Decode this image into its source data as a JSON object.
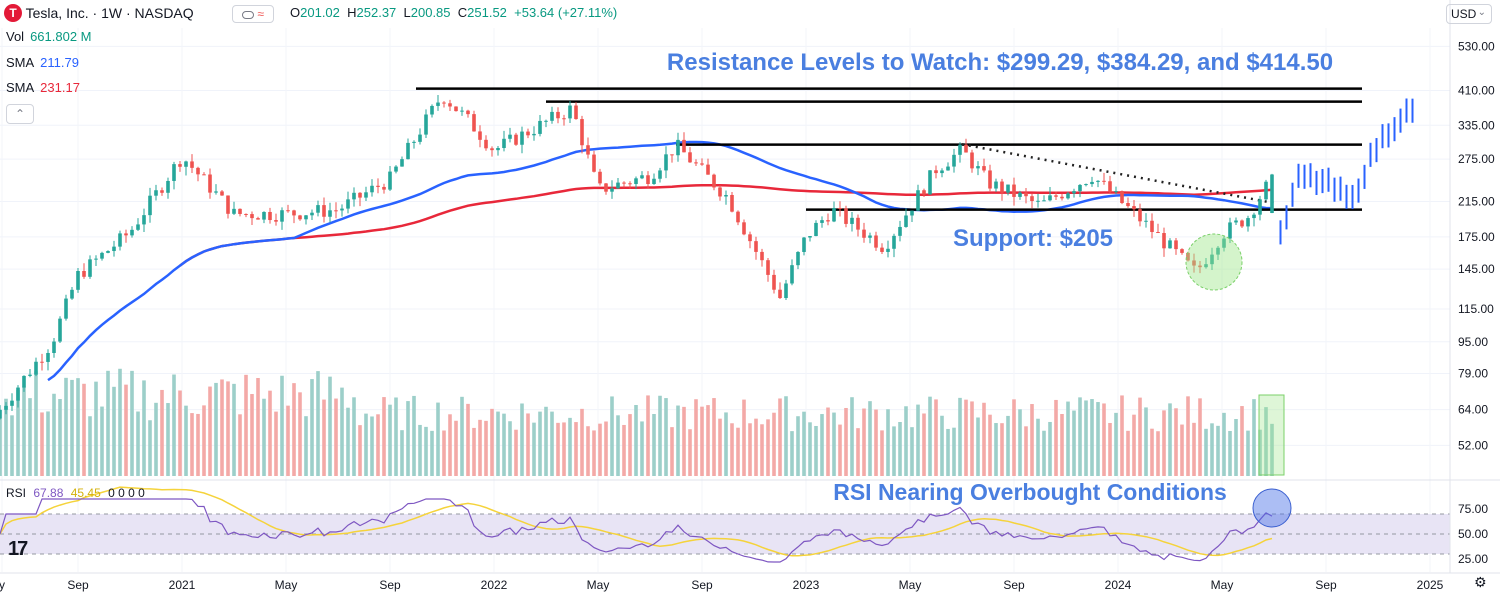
{
  "header": {
    "symbol": "Tesla, Inc. · 1W · NASDAQ",
    "logo_letter": "T",
    "compare_icon": "≈",
    "open_label": "O",
    "open": "201.02",
    "high_label": "H",
    "high": "252.37",
    "low_label": "L",
    "low": "200.85",
    "close_label": "C",
    "close": "251.52",
    "change": "+53.64 (+27.11%)",
    "currency": "USD"
  },
  "indicators": {
    "vol_label": "Vol",
    "vol_value": "661.802 M",
    "sma1_label": "SMA",
    "sma1_value": "211.79",
    "sma2_label": "SMA",
    "sma2_value": "231.17",
    "rsi_label": "RSI",
    "rsi_value": "67.88",
    "rsi_ma": "45.45",
    "rsi_extra": "0 0 0 0"
  },
  "colors": {
    "up": "#26a69a",
    "down": "#ef5350",
    "up_vol": "#9ccfc9",
    "down_vol": "#f3a9a7",
    "sma_short": "#2962ff",
    "sma_long": "#e8283a",
    "annotation": "#4a7fe0",
    "forecast": "#2962ff",
    "rsi_line": "#7e57c2",
    "rsi_ma": "#f5d33b",
    "rsi_band": "#e8e4f5"
  },
  "chart_data": {
    "type": "candlestick",
    "title": "Tesla, Inc. · 1W · NASDAQ",
    "price_axis_ticks": [
      "530.00",
      "410.00",
      "335.00",
      "275.00",
      "215.00",
      "175.00",
      "145.00",
      "115.00",
      "95.00",
      "79.00",
      "64.00",
      "52.00"
    ],
    "rsi_axis_ticks": [
      "75.00",
      "50.00",
      "25.00"
    ],
    "time_axis_labels": [
      "y",
      "Sep",
      "2021",
      "May",
      "Sep",
      "2022",
      "May",
      "Sep",
      "2023",
      "May",
      "Sep",
      "2024",
      "May",
      "Sep",
      "2025"
    ],
    "price_anchors": [
      {
        "t": "2020-06",
        "close": 64
      },
      {
        "t": "2020-08",
        "close": 95
      },
      {
        "t": "2020-09",
        "close": 140
      },
      {
        "t": "2020-11",
        "close": 180
      },
      {
        "t": "2021-01",
        "close": 280
      },
      {
        "t": "2021-03",
        "close": 200
      },
      {
        "t": "2021-05",
        "close": 200
      },
      {
        "t": "2021-07",
        "close": 205
      },
      {
        "t": "2021-09",
        "close": 245
      },
      {
        "t": "2021-11",
        "close": 400
      },
      {
        "t": "2021-12",
        "close": 345
      },
      {
        "t": "2022-01",
        "close": 290
      },
      {
        "t": "2022-04",
        "close": 370
      },
      {
        "t": "2022-05",
        "close": 230
      },
      {
        "t": "2022-07",
        "close": 250
      },
      {
        "t": "2022-08",
        "close": 298
      },
      {
        "t": "2022-10",
        "close": 220
      },
      {
        "t": "2022-12",
        "close": 123
      },
      {
        "t": "2023-01",
        "close": 175
      },
      {
        "t": "2023-02",
        "close": 205
      },
      {
        "t": "2023-04",
        "close": 165
      },
      {
        "t": "2023-06",
        "close": 260
      },
      {
        "t": "2023-07",
        "close": 290
      },
      {
        "t": "2023-08",
        "close": 240
      },
      {
        "t": "2023-10",
        "close": 210
      },
      {
        "t": "2023-12",
        "close": 250
      },
      {
        "t": "2024-02",
        "close": 190
      },
      {
        "t": "2024-04",
        "close": 142
      },
      {
        "t": "2024-05",
        "close": 178
      },
      {
        "t": "2024-06",
        "close": 197
      },
      {
        "t": "2024-07",
        "close": 251.52
      }
    ],
    "sma_short": {
      "name": "SMA",
      "last": 211.79
    },
    "sma_long": {
      "name": "SMA",
      "last": 231.17
    },
    "resistance_levels": [
      299.29,
      384.29,
      414.5
    ],
    "support_level": 205,
    "projection_anchors": [
      {
        "t": "2024-07",
        "price": 150
      },
      {
        "t": "2024-08",
        "price": 250
      },
      {
        "t": "2024-09",
        "price": 240
      },
      {
        "t": "2024-10",
        "price": 215
      },
      {
        "t": "2024-11",
        "price": 300
      },
      {
        "t": "2024-12",
        "price": 360
      }
    ],
    "rsi": {
      "last": 67.88,
      "ma": 45.45,
      "upper_band": 70,
      "lower_band": 30
    }
  },
  "annotations": {
    "resistance_text": "Resistance Levels to Watch: $299.29, $384.29, and $414.50",
    "support_text": "Support: $205",
    "rsi_text": "RSI Nearing Overbought Conditions"
  },
  "footer": {
    "settings_icon": "gear-icon",
    "watermark": "tradingview-logo"
  }
}
